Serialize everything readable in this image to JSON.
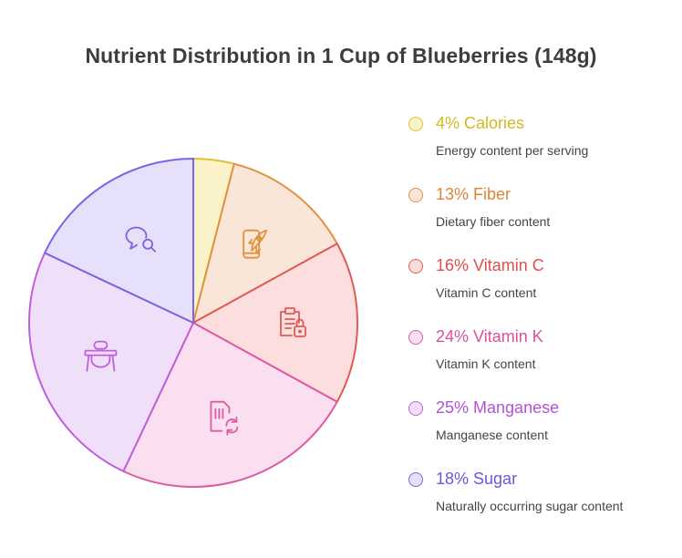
{
  "chart_data": {
    "type": "pie",
    "title": "Nutrient Distribution in 1 Cup of Blueberries (148g)",
    "slices": [
      {
        "label": "4% Calories",
        "value": 4,
        "description": "Energy content per serving",
        "fill": "#faf3c9",
        "stroke": "#dfc232",
        "text": "#d4b820",
        "icon": "calories-icon"
      },
      {
        "label": "13% Fiber",
        "value": 13,
        "description": "Dietary fiber content",
        "fill": "#fae6d8",
        "stroke": "#e0913f",
        "text": "#dc8536",
        "icon": "phone-rocket-icon"
      },
      {
        "label": "16% Vitamin C",
        "value": 16,
        "description": "Vitamin C content",
        "fill": "#fbdedd",
        "stroke": "#e05a58",
        "text": "#dd4e4c",
        "icon": "clipboard-lock-icon"
      },
      {
        "label": "24% Vitamin K",
        "value": 24,
        "description": "Vitamin K content",
        "fill": "#f9dff0",
        "stroke": "#de5aa6",
        "text": "#d9509e",
        "icon": "sim-card-refresh-icon"
      },
      {
        "label": "25% Manganese",
        "value": 25,
        "description": "Manganese content",
        "fill": "#f0dff8",
        "stroke": "#c05fdc",
        "text": "#b352d8",
        "icon": "high-chair-icon"
      },
      {
        "label": "18% Sugar",
        "value": 18,
        "description": "Naturally occurring sugar content",
        "fill": "#e6e0fb",
        "stroke": "#7d64e0",
        "text": "#6f55dc",
        "icon": "search-chat-icon"
      }
    ]
  }
}
